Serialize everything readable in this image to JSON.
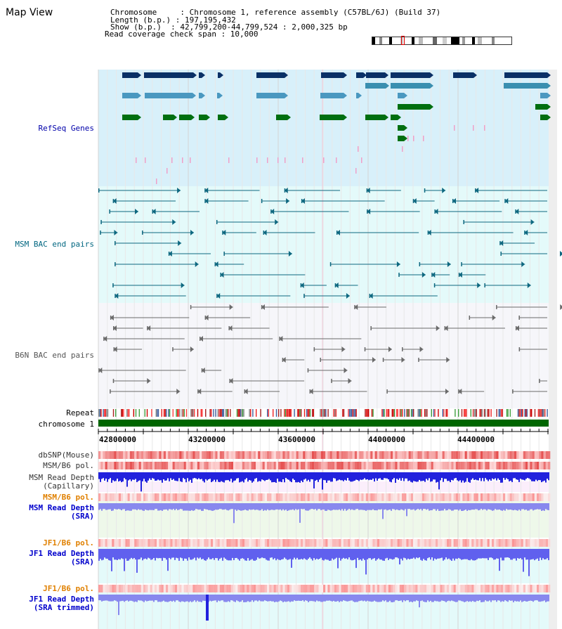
{
  "title": "Map View",
  "info": {
    "line1": "Chromosome     : Chromosome 1, reference assembly (C57BL/6J) (Build 37)",
    "line2": "Length (b.p.) : 197,195,432",
    "line3": "Show (b.p.)  : 42,799,200-44,799,524 : 2,000,325 bp",
    "line4": "Read coverage check span : 10,000"
  },
  "tracks": {
    "refseq": "RefSeq Genes",
    "msm_bac": "MSM BAC end pairs",
    "b6n_bac": "B6N BAC end pairs",
    "repeat": "Repeat",
    "chromosome": "chromosome 1",
    "dbsnp": "dbSNP(Mouse)",
    "msm_b6_pol": "MSM/B6 pol.",
    "msm_depth_cap_1": "MSM Read Depth",
    "msm_depth_cap_2": "(Capillary)",
    "msm_b6_pol2": "MSM/B6 pol.",
    "msm_depth_sra_1": "MSM Read Depth",
    "msm_depth_sra_2": "(SRA)",
    "jf1_b6_pol": "JF1/B6 pol.",
    "jf1_depth_sra_1": "JF1 Read Depth",
    "jf1_depth_sra_2": "(SRA)",
    "jf1_b6_pol2": "JF1/B6 pol.",
    "jf1_depth_trim_1": "JF1 Read Depth",
    "jf1_depth_trim_2": "(SRA trimmed)"
  },
  "axis": {
    "ticks": [
      "42800000",
      "43200000",
      "43600000",
      "44000000",
      "44400000"
    ]
  },
  "colors": {
    "refseq_label": "#0000aa",
    "msm_bac_label": "#006680",
    "b6n_bac_label": "#555555",
    "orange_label": "#e08000",
    "blue_label": "#0000cc",
    "chromosome_bar": "#006600"
  }
}
